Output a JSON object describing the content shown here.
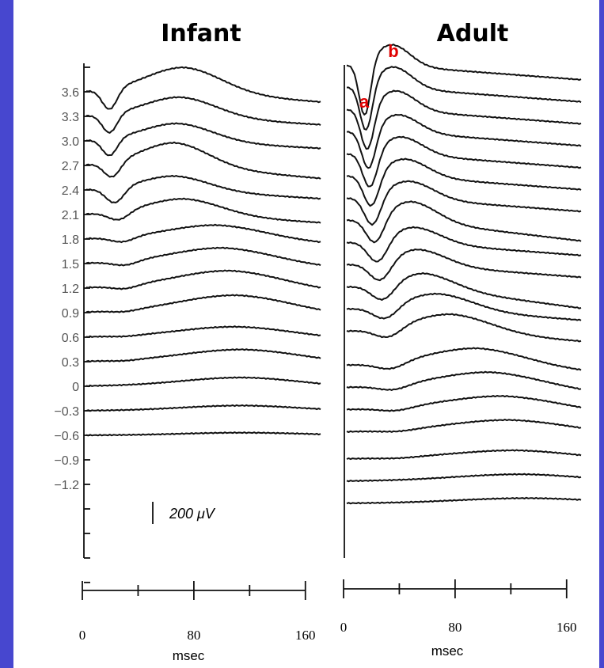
{
  "chart_data": {
    "type": "line",
    "y_tick_labels": [
      "3.6",
      "3.3",
      "3.0",
      "2.7",
      "2.4",
      "2.1",
      "1.8",
      "1.5",
      "1.2",
      "0.9",
      "0.6",
      "0.3",
      "0",
      "−0.3",
      "−0.6",
      "−0.9",
      "−1.2"
    ],
    "scale_bar_label": "200 μV",
    "panels": [
      {
        "title": "Infant",
        "x_tick_labels": [
          "0",
          "80",
          "160"
        ],
        "x_label": "msec",
        "xlim": [
          0,
          180
        ],
        "x_ticks": [
          0,
          40,
          80,
          120,
          160
        ],
        "traces": [
          {
            "level": "3.6",
            "a_latency": 18,
            "a_depth": 1.2,
            "b_latency": 75,
            "b_height": 1.4,
            "end_drop": 1.0
          },
          {
            "level": "3.3",
            "a_latency": 18,
            "a_depth": 1.1,
            "b_latency": 72,
            "b_height": 1.1,
            "end_drop": 0.8
          },
          {
            "level": "3.0",
            "a_latency": 18,
            "a_depth": 1.0,
            "b_latency": 70,
            "b_height": 1.0,
            "end_drop": 0.7
          },
          {
            "level": "2.7",
            "a_latency": 20,
            "a_depth": 0.9,
            "b_latency": 68,
            "b_height": 1.3,
            "end_drop": 1.2
          },
          {
            "level": "2.4",
            "a_latency": 22,
            "a_depth": 0.9,
            "b_latency": 68,
            "b_height": 0.8,
            "end_drop": 0.8
          },
          {
            "level": "2.1",
            "a_latency": 25,
            "a_depth": 0.5,
            "b_latency": 75,
            "b_height": 0.9,
            "end_drop": 0.8
          },
          {
            "level": "1.8",
            "a_latency": 28,
            "a_depth": 0.3,
            "b_latency": 100,
            "b_height": 0.8,
            "end_drop": 0.6
          },
          {
            "level": "1.5",
            "a_latency": 30,
            "a_depth": 0.25,
            "b_latency": 105,
            "b_height": 0.9,
            "end_drop": 0.6
          },
          {
            "level": "1.2",
            "a_latency": 30,
            "a_depth": 0.2,
            "b_latency": 110,
            "b_height": 1.0,
            "end_drop": 0.6
          },
          {
            "level": "0.9",
            "a_latency": 30,
            "a_depth": 0.1,
            "b_latency": 115,
            "b_height": 1.0,
            "end_drop": 0.5
          },
          {
            "level": "0.6",
            "a_latency": 30,
            "a_depth": 0.05,
            "b_latency": 115,
            "b_height": 0.6,
            "end_drop": 0.3
          },
          {
            "level": "0.3",
            "a_latency": 30,
            "a_depth": 0.05,
            "b_latency": 120,
            "b_height": 0.7,
            "end_drop": 0.3
          },
          {
            "level": "0",
            "a_latency": 30,
            "a_depth": 0.0,
            "b_latency": 120,
            "b_height": 0.5,
            "end_drop": 0.2
          },
          {
            "level": "−0.3",
            "a_latency": 30,
            "a_depth": 0.0,
            "b_latency": 120,
            "b_height": 0.3,
            "end_drop": 0.1
          },
          {
            "level": "−0.6",
            "a_latency": 30,
            "a_depth": 0.0,
            "b_latency": 120,
            "b_height": 0.15,
            "end_drop": 0.0
          }
        ]
      },
      {
        "title": "Adult",
        "x_tick_labels": [
          "0",
          "80",
          "160"
        ],
        "x_label": "msec",
        "xlim": [
          0,
          180
        ],
        "x_ticks": [
          0,
          40,
          80,
          120,
          160
        ],
        "peak_labels": [
          "a",
          "b"
        ],
        "traces": [
          {
            "level": "1",
            "a_latency": 14,
            "a_depth": 3.2,
            "b_latency": 35,
            "b_height": 1.2,
            "end_drop": 1.0
          },
          {
            "level": "2",
            "a_latency": 15,
            "a_depth": 2.8,
            "b_latency": 36,
            "b_height": 1.2,
            "end_drop": 1.0
          },
          {
            "level": "3",
            "a_latency": 16,
            "a_depth": 2.6,
            "b_latency": 38,
            "b_height": 1.1,
            "end_drop": 1.0
          },
          {
            "level": "4",
            "a_latency": 17,
            "a_depth": 2.4,
            "b_latency": 40,
            "b_height": 1.0,
            "end_drop": 1.0
          },
          {
            "level": "5",
            "a_latency": 18,
            "a_depth": 2.2,
            "b_latency": 42,
            "b_height": 1.0,
            "end_drop": 1.0
          },
          {
            "level": "6",
            "a_latency": 19,
            "a_depth": 2.0,
            "b_latency": 45,
            "b_height": 1.0,
            "end_drop": 1.0
          },
          {
            "level": "7",
            "a_latency": 20,
            "a_depth": 1.8,
            "b_latency": 48,
            "b_height": 1.0,
            "end_drop": 1.0
          },
          {
            "level": "8",
            "a_latency": 22,
            "a_depth": 1.6,
            "b_latency": 50,
            "b_height": 1.1,
            "end_drop": 1.6
          },
          {
            "level": "9",
            "a_latency": 24,
            "a_depth": 1.4,
            "b_latency": 52,
            "b_height": 0.9,
            "end_drop": 1.0
          },
          {
            "level": "10",
            "a_latency": 26,
            "a_depth": 1.2,
            "b_latency": 55,
            "b_height": 0.9,
            "end_drop": 1.0
          },
          {
            "level": "11",
            "a_latency": 28,
            "a_depth": 1.0,
            "b_latency": 60,
            "b_height": 0.8,
            "end_drop": 1.8
          },
          {
            "level": "12",
            "a_latency": 30,
            "a_depth": 0.8,
            "b_latency": 70,
            "b_height": 0.9,
            "end_drop": 1.0
          },
          {
            "level": "13",
            "a_latency": 32,
            "a_depth": 0.6,
            "b_latency": 80,
            "b_height": 1.0,
            "end_drop": 1.0
          },
          {
            "level": "14",
            "a_latency": 34,
            "a_depth": 0.4,
            "b_latency": 100,
            "b_height": 1.0,
            "end_drop": 0.8
          },
          {
            "level": "15",
            "a_latency": 36,
            "a_depth": 0.3,
            "b_latency": 110,
            "b_height": 0.9,
            "end_drop": 0.8
          },
          {
            "level": "16",
            "a_latency": 38,
            "a_depth": 0.2,
            "b_latency": 120,
            "b_height": 0.8,
            "end_drop": 0.6
          },
          {
            "level": "17",
            "a_latency": 40,
            "a_depth": 0.1,
            "b_latency": 125,
            "b_height": 0.7,
            "end_drop": 0.4
          },
          {
            "level": "18",
            "a_latency": 40,
            "a_depth": 0.05,
            "b_latency": 130,
            "b_height": 0.5,
            "end_drop": 0.3
          },
          {
            "level": "19",
            "a_latency": 40,
            "a_depth": 0.0,
            "b_latency": 135,
            "b_height": 0.4,
            "end_drop": 0.2
          },
          {
            "level": "20",
            "a_latency": 40,
            "a_depth": 0.0,
            "b_latency": 140,
            "b_height": 0.3,
            "end_drop": 0.1
          }
        ]
      }
    ]
  }
}
